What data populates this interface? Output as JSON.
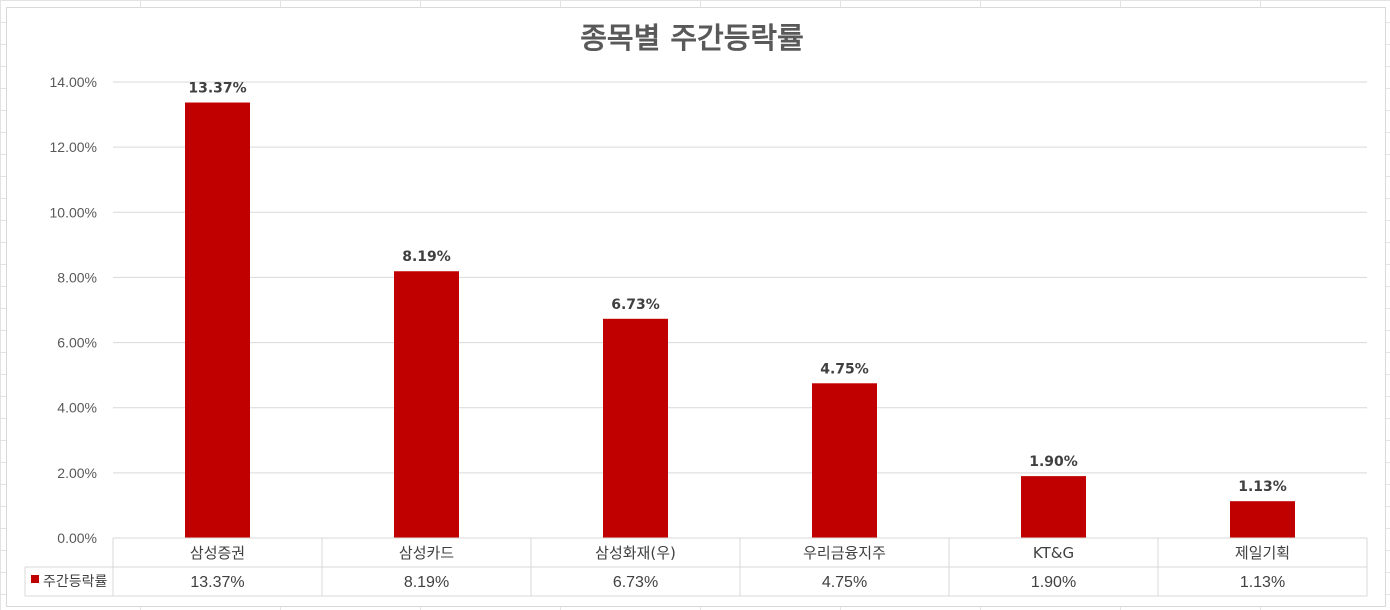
{
  "chart_data": {
    "type": "bar",
    "title": "종목별 주간등락률",
    "categories": [
      "삼성증권",
      "삼성카드",
      "삼성화재(우)",
      "우리금융지주",
      "KT&G",
      "제일기획"
    ],
    "series": [
      {
        "name": "주간등락률",
        "values": [
          13.37,
          8.19,
          6.73,
          4.75,
          1.9,
          1.13
        ],
        "labels": [
          "13.37%",
          "8.19%",
          "6.73%",
          "4.75%",
          "1.90%",
          "1.13%"
        ],
        "color": "#c00000"
      }
    ],
    "ylim": [
      0,
      14
    ],
    "yticks": [
      0,
      2,
      4,
      6,
      8,
      10,
      12,
      14
    ],
    "ytick_labels": [
      "0.00%",
      "2.00%",
      "4.00%",
      "6.00%",
      "8.00%",
      "10.00%",
      "12.00%",
      "14.00%"
    ],
    "grid": true,
    "data_table": true,
    "legend": "in-data-table"
  }
}
